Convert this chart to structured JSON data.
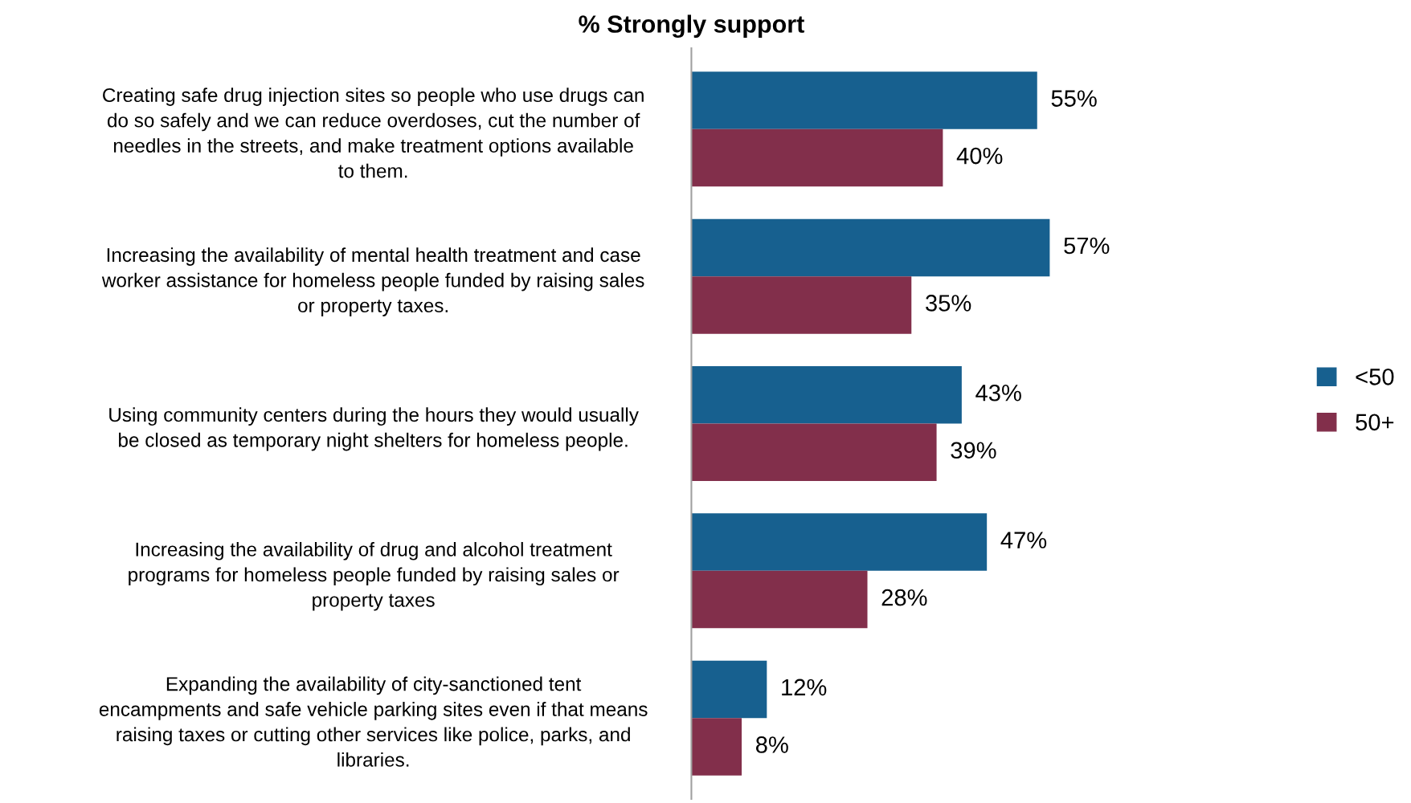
{
  "chart_data": {
    "type": "bar",
    "orientation": "horizontal",
    "title": "% Strongly support",
    "categories": [
      "Creating safe drug injection sites so people who use drugs can\ndo so safely and we can reduce overdoses, cut the number of\nneedles in the streets, and make treatment options available\nto them.",
      "Increasing the availability of mental health treatment and case\nworker assistance for homeless people funded by raising sales\nor property taxes.",
      "Using community centers during the hours they would usually\nbe closed as temporary night shelters for homeless people.",
      "Increasing the availability of drug and alcohol treatment\nprograms for homeless people funded by raising sales or\nproperty taxes",
      "Expanding the availability of city-sanctioned tent\nencampments and safe vehicle parking sites even if that means\nraising taxes or cutting other services like police, parks, and\nlibraries."
    ],
    "series": [
      {
        "name": "<50",
        "color": "#17608f",
        "values": [
          55,
          57,
          43,
          47,
          12
        ],
        "value_labels": [
          "55%",
          "57%",
          "43%",
          "47%",
          "12%"
        ]
      },
      {
        "name": "50+",
        "color": "#822f4b",
        "values": [
          40,
          35,
          39,
          28,
          8
        ],
        "value_labels": [
          "40%",
          "35%",
          "39%",
          "28%",
          "8%"
        ]
      }
    ],
    "legend": "right",
    "grid": false,
    "tick_labels": "y"
  }
}
